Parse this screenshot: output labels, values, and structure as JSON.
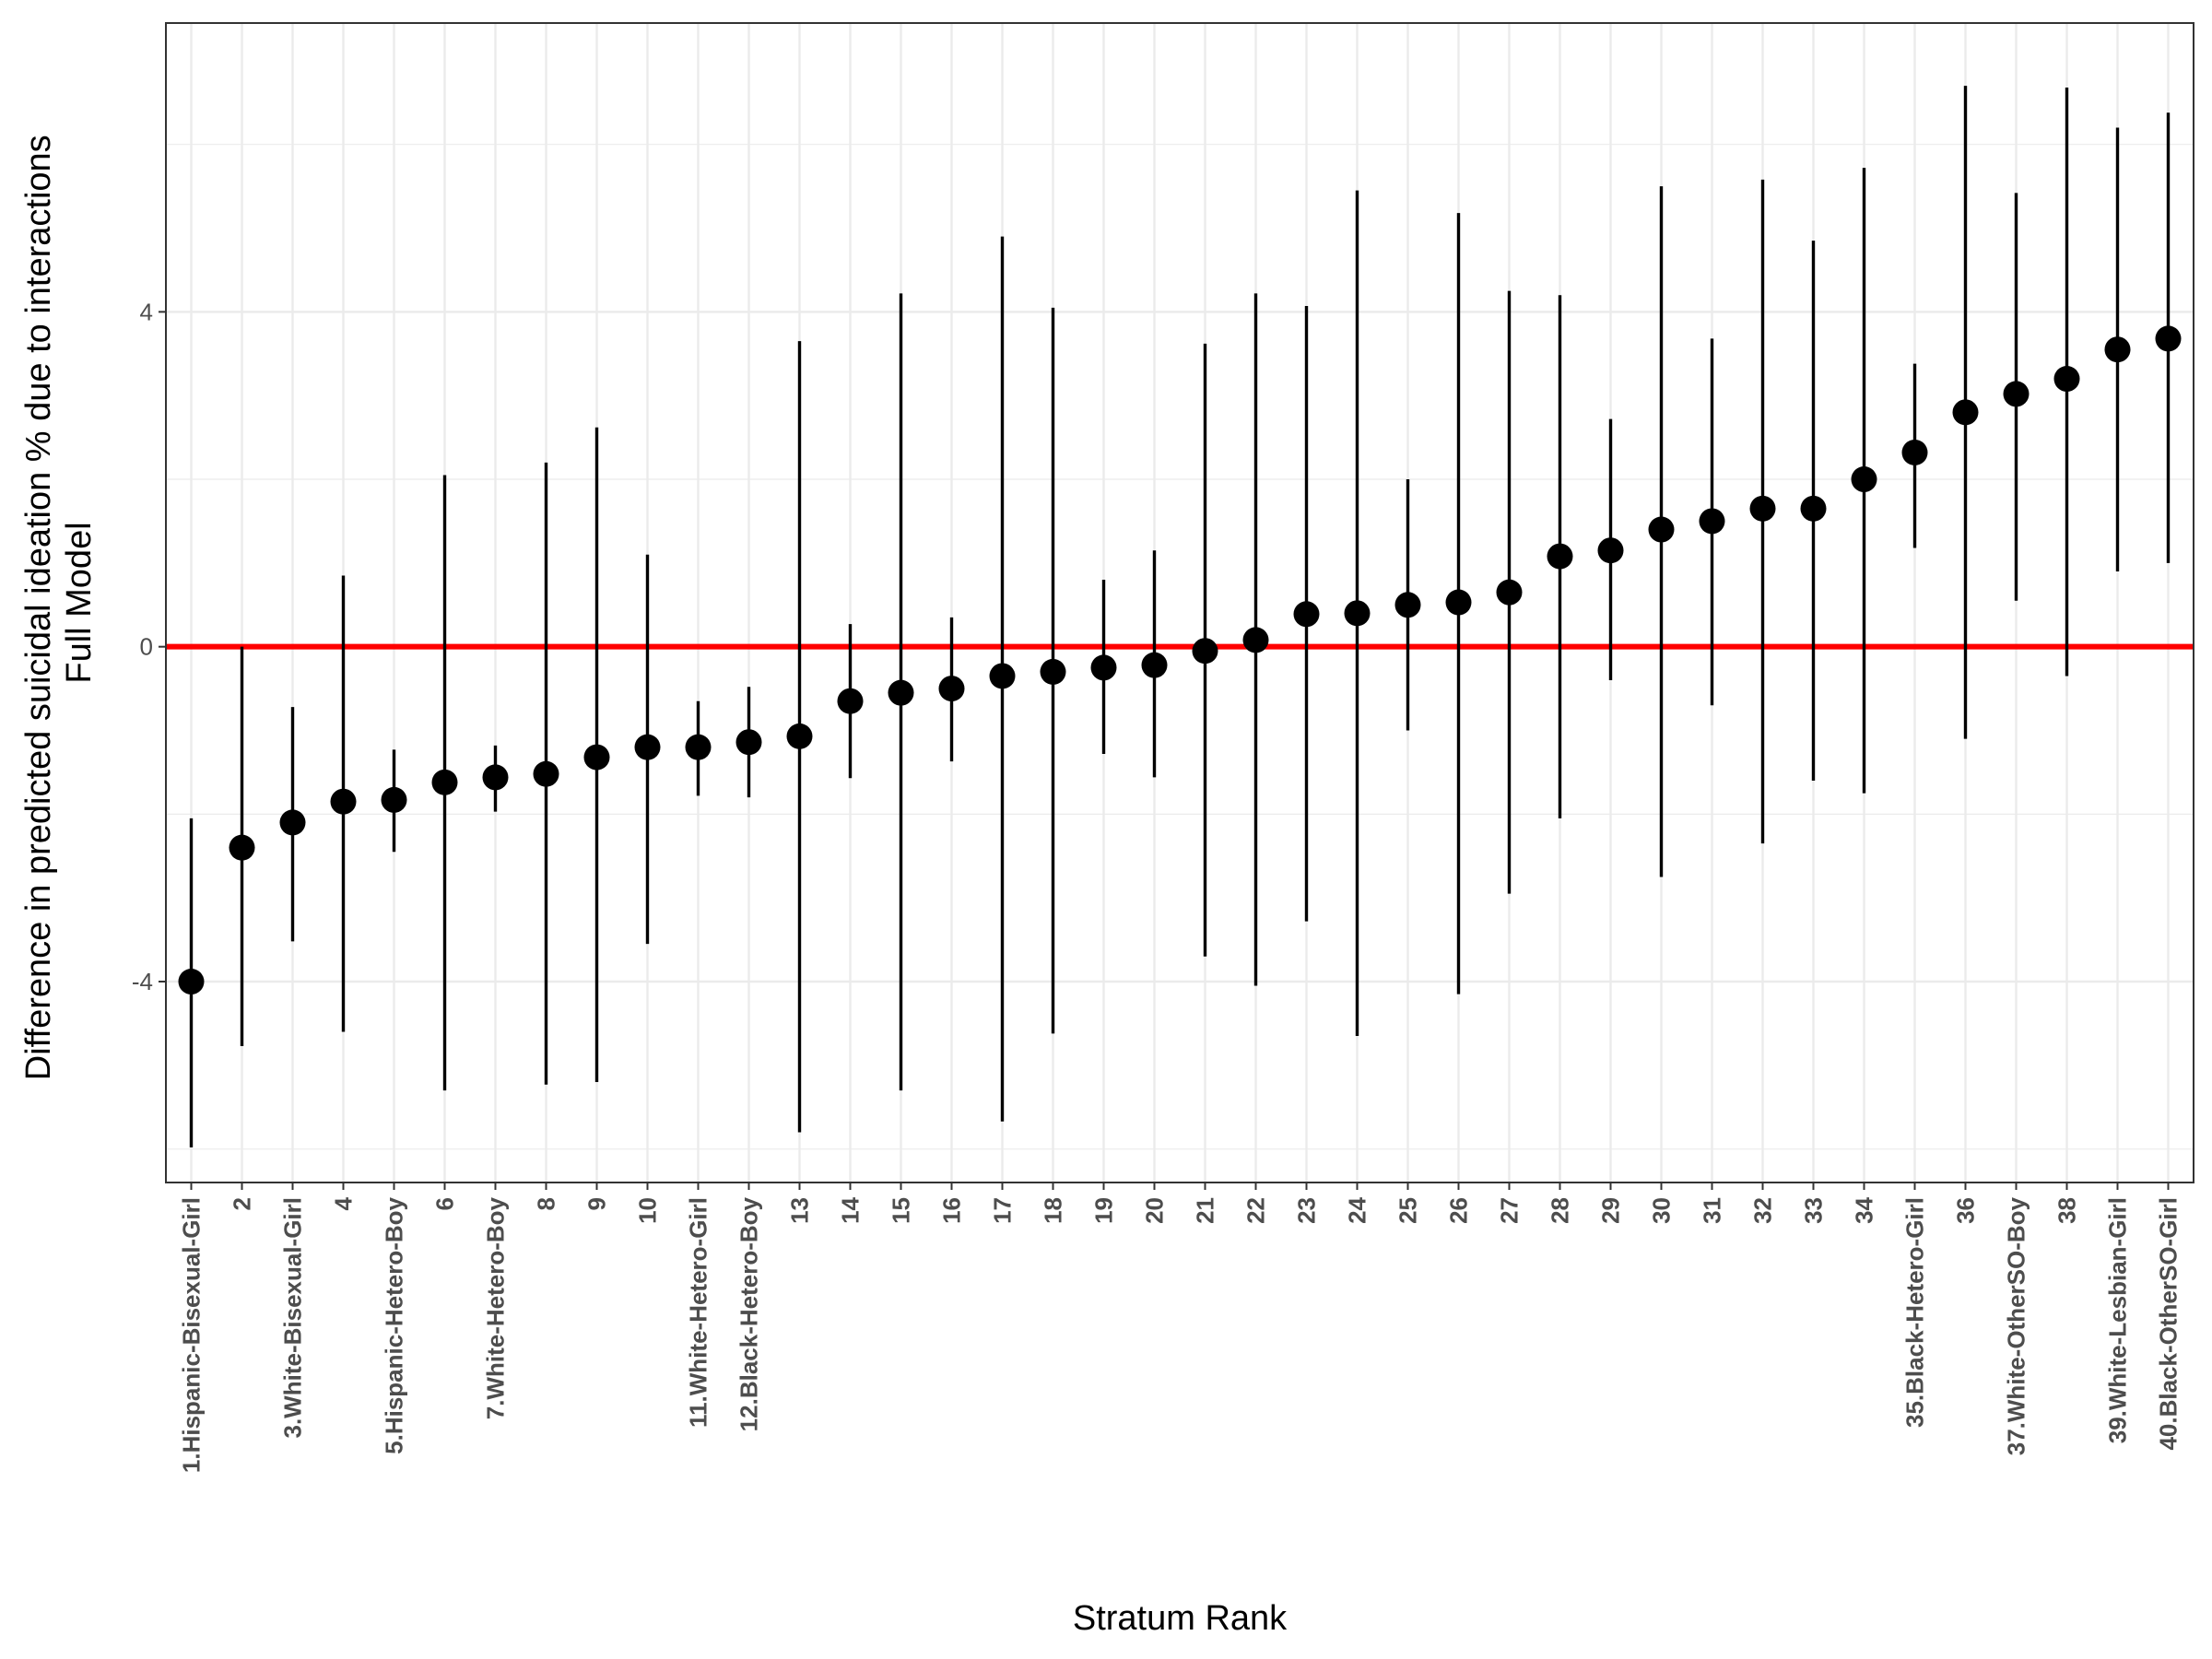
{
  "chart_data": {
    "type": "scatter",
    "subtype": "point-range",
    "xlabel": "Stratum Rank",
    "ylabel_lines": [
      "Difference in predicted suicidal ideation % due to interactions",
      "Full Model"
    ],
    "ylim": [
      -6.4,
      7.45
    ],
    "y_ticks": [
      -4,
      0,
      4
    ],
    "grid": true,
    "reference_line": {
      "y": 0,
      "color": "#ff0000"
    },
    "point_color": "#000000",
    "categories": [
      "1.Hispanic-Bisexual-Girl",
      "2",
      "3.White-Bisexual-Girl",
      "4",
      "5.Hispanic-Hetero-Boy",
      "6",
      "7.White-Hetero-Boy",
      "8",
      "9",
      "10",
      "11.White-Hetero-Girl",
      "12.Black-Hetero-Boy",
      "13",
      "14",
      "15",
      "16",
      "17",
      "18",
      "19",
      "20",
      "21",
      "22",
      "23",
      "24",
      "25",
      "26",
      "27",
      "28",
      "29",
      "30",
      "31",
      "32",
      "33",
      "34",
      "35.Black-Hetero-Girl",
      "36",
      "37.White-OtherSO-Boy",
      "38",
      "39.White-Lesbian-Girl",
      "40.Black-OtherSO-Girl"
    ],
    "estimates": [
      -4.0,
      -2.4,
      -2.1,
      -1.85,
      -1.83,
      -1.62,
      -1.56,
      -1.52,
      -1.32,
      -1.2,
      -1.2,
      -1.14,
      -1.07,
      -0.65,
      -0.55,
      -0.5,
      -0.35,
      -0.3,
      -0.25,
      -0.22,
      -0.05,
      0.08,
      0.39,
      0.4,
      0.5,
      0.53,
      0.65,
      1.08,
      1.15,
      1.4,
      1.5,
      1.65,
      1.65,
      2.0,
      2.32,
      2.8,
      3.02,
      3.2,
      3.55,
      3.68
    ],
    "lower": [
      -5.98,
      -4.77,
      -3.52,
      -4.6,
      -2.45,
      -5.3,
      -1.97,
      -5.23,
      -5.2,
      -3.55,
      -1.78,
      -1.8,
      -5.8,
      -1.57,
      -5.3,
      -1.37,
      -5.67,
      -4.62,
      -1.28,
      -1.56,
      -3.7,
      -4.05,
      -3.28,
      -4.65,
      -1.0,
      -4.15,
      -2.95,
      -2.05,
      -0.4,
      -2.75,
      -0.7,
      -2.35,
      -1.6,
      -1.75,
      1.18,
      -1.1,
      0.55,
      -0.35,
      0.9,
      1.0
    ],
    "upper": [
      -2.05,
      0.0,
      -0.72,
      0.85,
      -1.23,
      2.05,
      -1.18,
      2.2,
      2.62,
      1.1,
      -0.65,
      -0.48,
      3.65,
      0.27,
      4.22,
      0.35,
      4.9,
      4.05,
      0.8,
      1.15,
      3.62,
      4.22,
      4.07,
      5.45,
      2.0,
      5.18,
      4.25,
      4.2,
      2.72,
      5.5,
      3.68,
      5.58,
      4.85,
      5.72,
      3.38,
      6.7,
      5.42,
      6.68,
      6.2,
      6.38
    ]
  }
}
